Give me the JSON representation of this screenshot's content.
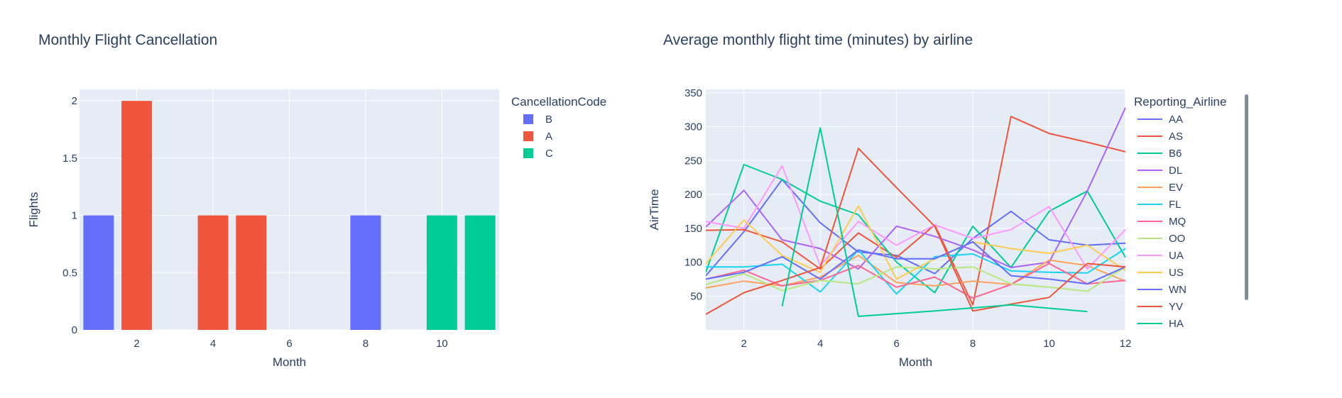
{
  "chart_data": [
    {
      "type": "bar",
      "title": "Monthly Flight Cancellation",
      "xlabel": "Month",
      "ylabel": "Flights",
      "xlim": [
        0.5,
        11.5
      ],
      "ylim": [
        0,
        2.1
      ],
      "xticks": [
        2,
        4,
        6,
        8,
        10
      ],
      "yticks": [
        0,
        0.5,
        1,
        1.5,
        2
      ],
      "grid": true,
      "legend_title": "CancellationCode",
      "legend_position": "right",
      "series": [
        {
          "name": "B",
          "color": "#636efa",
          "x": [
            1,
            8
          ],
          "values": [
            1,
            1
          ]
        },
        {
          "name": "A",
          "color": "#ef553b",
          "x": [
            2,
            4,
            5
          ],
          "values": [
            2,
            1,
            1
          ]
        },
        {
          "name": "C",
          "color": "#00cc96",
          "x": [
            10,
            11
          ],
          "values": [
            1,
            1
          ]
        }
      ]
    },
    {
      "type": "line",
      "title": "Average monthly flight time (minutes) by airline",
      "xlabel": "Month",
      "ylabel": "AirTime",
      "xlim": [
        1,
        12
      ],
      "ylim": [
        0,
        355
      ],
      "xticks": [
        2,
        4,
        6,
        8,
        10,
        12
      ],
      "yticks": [
        50,
        100,
        150,
        200,
        250,
        300,
        350
      ],
      "grid": true,
      "legend_title": "Reporting_Airline",
      "legend_position": "right",
      "series": [
        {
          "name": "AA",
          "color": "#636efa",
          "x": [
            1,
            2,
            3,
            4,
            5,
            6,
            7,
            8,
            9,
            10,
            11,
            12
          ],
          "values": [
            80,
            145,
            222,
            158,
            115,
            110,
            83,
            135,
            175,
            133,
            125,
            128
          ]
        },
        {
          "name": "AS",
          "color": "#ef553b",
          "x": [
            1,
            2,
            3,
            4,
            5,
            6,
            7,
            8,
            9,
            10,
            11,
            12
          ],
          "values": [
            147,
            148,
            130,
            90,
            143,
            107,
            155,
            37,
            315,
            290,
            277,
            263
          ]
        },
        {
          "name": "B6",
          "color": "#00cc96",
          "x": [
            1,
            2,
            3,
            4,
            5,
            6,
            7,
            8,
            9,
            10,
            11,
            12
          ],
          "values": [
            85,
            244,
            222,
            190,
            170,
            100,
            55,
            153,
            92,
            175,
            205,
            107
          ]
        },
        {
          "name": "DL",
          "color": "#ab63fa",
          "x": [
            1,
            2,
            3,
            4,
            5,
            6,
            7,
            8,
            9,
            10,
            11,
            12
          ],
          "values": [
            152,
            206,
            133,
            120,
            90,
            153,
            138,
            118,
            92,
            100,
            205,
            328
          ]
        },
        {
          "name": "EV",
          "color": "#ffa15a",
          "x": [
            1,
            2,
            3,
            4,
            5,
            6,
            7,
            8,
            9,
            10,
            11,
            12
          ],
          "values": [
            62,
            72,
            65,
            78,
            110,
            70,
            65,
            72,
            67,
            103,
            95,
            72
          ]
        },
        {
          "name": "FL",
          "color": "#19d3f3",
          "x": [
            1,
            2,
            3,
            4,
            5,
            6,
            7,
            8,
            9,
            10,
            11,
            12
          ],
          "values": [
            93,
            93,
            97,
            56,
            118,
            53,
            108,
            112,
            87,
            85,
            84,
            120
          ]
        },
        {
          "name": "MQ",
          "color": "#ff6692",
          "x": [
            1,
            2,
            3,
            4,
            5,
            6,
            7,
            8,
            9,
            10,
            11,
            12
          ],
          "values": [
            75,
            88,
            65,
            73,
            95,
            63,
            78,
            47,
            67,
            98,
            68,
            73
          ]
        },
        {
          "name": "OO",
          "color": "#b6e880",
          "x": [
            1,
            2,
            3,
            4,
            5,
            6,
            7,
            8,
            9,
            10,
            11,
            12
          ],
          "values": [
            67,
            83,
            58,
            73,
            68,
            93,
            90,
            93,
            68,
            63,
            57,
            93
          ]
        },
        {
          "name": "UA",
          "color": "#ff97ff",
          "x": [
            1,
            2,
            3,
            4,
            5,
            6,
            7,
            8,
            9,
            10,
            11,
            12
          ],
          "values": [
            160,
            150,
            242,
            95,
            160,
            125,
            155,
            135,
            148,
            182,
            90,
            148
          ]
        },
        {
          "name": "US",
          "color": "#fecb52",
          "x": [
            1,
            2,
            3,
            4,
            5,
            6,
            7,
            8,
            9,
            10,
            11,
            12
          ],
          "values": [
            98,
            162,
            110,
            85,
            183,
            75,
            105,
            130,
            120,
            113,
            125,
            88
          ]
        },
        {
          "name": "WN",
          "color": "#636efa",
          "x": [
            1,
            2,
            3,
            4,
            5,
            6,
            7,
            8,
            9,
            10,
            11,
            12
          ],
          "values": [
            75,
            85,
            108,
            75,
            118,
            105,
            105,
            130,
            80,
            75,
            68,
            93
          ]
        },
        {
          "name": "YV",
          "color": "#ef553b",
          "x": [
            1,
            2,
            3,
            4,
            5,
            6,
            7,
            8,
            9,
            10,
            11,
            12
          ],
          "values": [
            23,
            55,
            73,
            92,
            268,
            210,
            153,
            28,
            38,
            48,
            98,
            93
          ]
        },
        {
          "name": "HA",
          "color": "#00cc96",
          "x": [
            3,
            4,
            5,
            7,
            9,
            11
          ],
          "values": [
            35,
            298,
            20,
            28,
            37,
            27
          ]
        }
      ]
    }
  ]
}
